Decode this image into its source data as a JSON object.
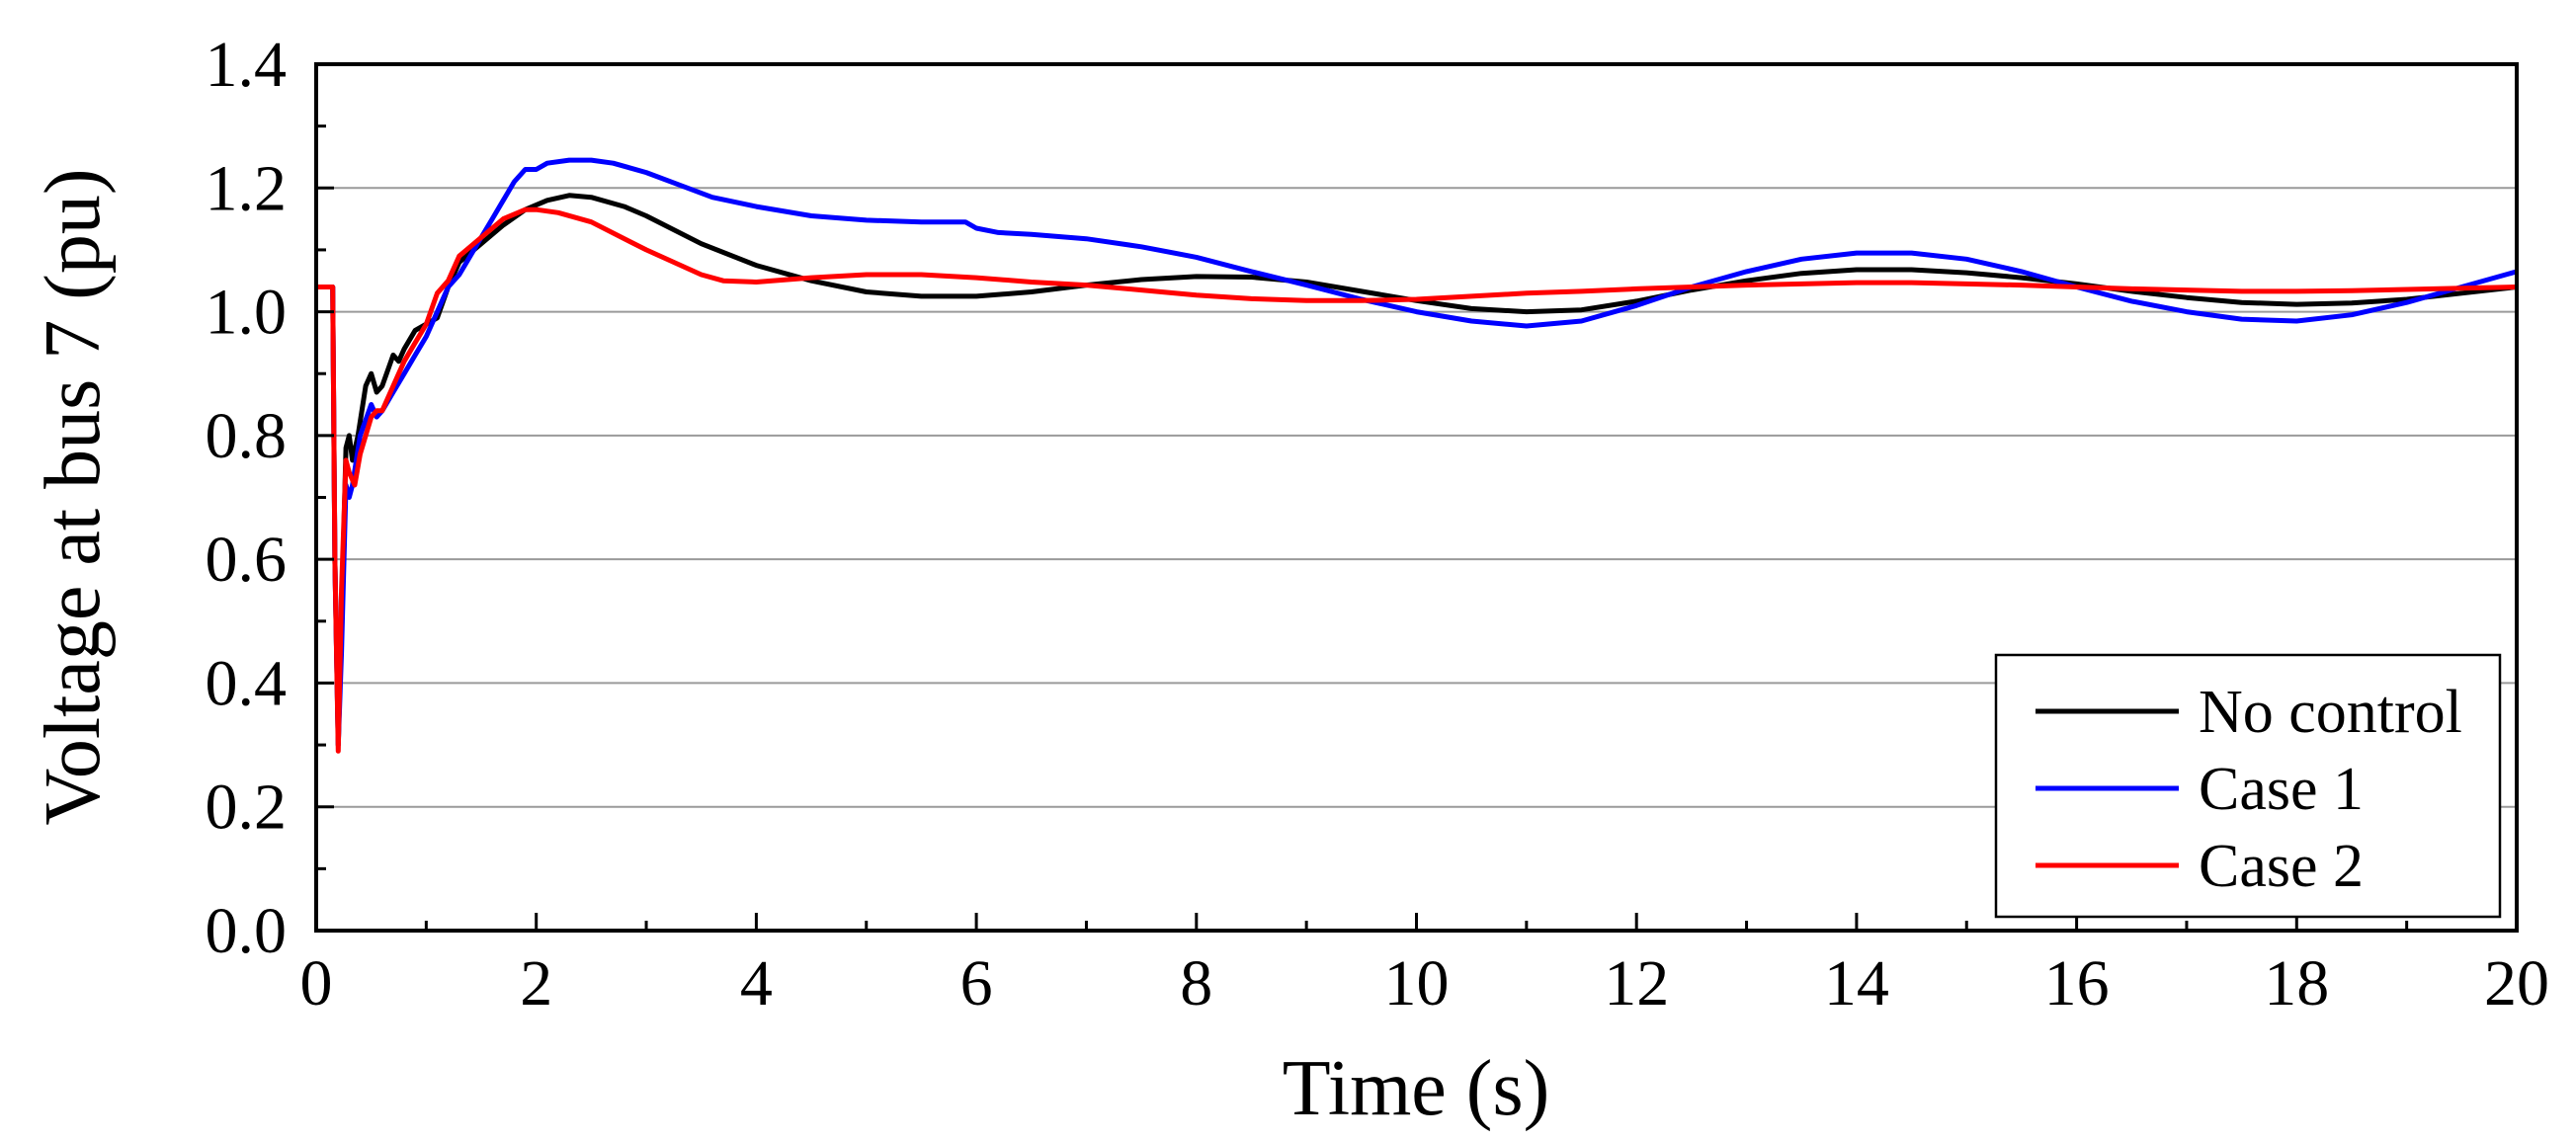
{
  "chart_data": {
    "type": "line",
    "title": "",
    "xlabel": "Time (s)",
    "ylabel": "Voltage at bus 7 (pu)",
    "xlim": [
      0,
      20
    ],
    "ylim": [
      0.0,
      1.4
    ],
    "xticks": [
      "0",
      "2",
      "4",
      "6",
      "8",
      "10",
      "12",
      "14",
      "16",
      "18",
      "20"
    ],
    "yticks": [
      "0.0",
      "0.2",
      "0.4",
      "0.6",
      "0.8",
      "1.0",
      "1.2",
      "1.4"
    ],
    "grid": "horizontal",
    "legend_position": "bottom-right",
    "series": [
      {
        "name": "No control",
        "color": "#000000",
        "points": [
          [
            0,
            1.04
          ],
          [
            0.15,
            1.04
          ],
          [
            0.17,
            0.6
          ],
          [
            0.2,
            0.3
          ],
          [
            0.23,
            0.5
          ],
          [
            0.27,
            0.78
          ],
          [
            0.3,
            0.8
          ],
          [
            0.33,
            0.76
          ],
          [
            0.38,
            0.8
          ],
          [
            0.45,
            0.88
          ],
          [
            0.5,
            0.9
          ],
          [
            0.55,
            0.87
          ],
          [
            0.6,
            0.88
          ],
          [
            0.7,
            0.93
          ],
          [
            0.75,
            0.92
          ],
          [
            0.8,
            0.94
          ],
          [
            0.9,
            0.97
          ],
          [
            1.0,
            0.98
          ],
          [
            1.1,
            0.99
          ],
          [
            1.2,
            1.04
          ],
          [
            1.3,
            1.08
          ],
          [
            1.5,
            1.11
          ],
          [
            1.7,
            1.14
          ],
          [
            1.9,
            1.165
          ],
          [
            2.1,
            1.18
          ],
          [
            2.3,
            1.188
          ],
          [
            2.5,
            1.185
          ],
          [
            2.8,
            1.17
          ],
          [
            3.0,
            1.155
          ],
          [
            3.5,
            1.11
          ],
          [
            4.0,
            1.075
          ],
          [
            4.5,
            1.05
          ],
          [
            5.0,
            1.032
          ],
          [
            5.5,
            1.025
          ],
          [
            6.0,
            1.025
          ],
          [
            6.5,
            1.032
          ],
          [
            7.0,
            1.043
          ],
          [
            7.5,
            1.052
          ],
          [
            8.0,
            1.057
          ],
          [
            8.5,
            1.056
          ],
          [
            9.0,
            1.048
          ],
          [
            9.5,
            1.033
          ],
          [
            10.0,
            1.018
          ],
          [
            10.5,
            1.005
          ],
          [
            11.0,
            1.0
          ],
          [
            11.5,
            1.003
          ],
          [
            12.0,
            1.017
          ],
          [
            12.5,
            1.035
          ],
          [
            13.0,
            1.05
          ],
          [
            13.5,
            1.062
          ],
          [
            14.0,
            1.068
          ],
          [
            14.5,
            1.068
          ],
          [
            15.0,
            1.063
          ],
          [
            15.5,
            1.055
          ],
          [
            16.0,
            1.045
          ],
          [
            16.5,
            1.033
          ],
          [
            17.0,
            1.023
          ],
          [
            17.5,
            1.015
          ],
          [
            18.0,
            1.012
          ],
          [
            18.5,
            1.014
          ],
          [
            19.0,
            1.02
          ],
          [
            19.5,
            1.03
          ],
          [
            20.0,
            1.04
          ]
        ]
      },
      {
        "name": "Case 1",
        "color": "#0000ff",
        "points": [
          [
            0,
            1.04
          ],
          [
            0.15,
            1.04
          ],
          [
            0.17,
            0.6
          ],
          [
            0.2,
            0.3
          ],
          [
            0.23,
            0.45
          ],
          [
            0.27,
            0.72
          ],
          [
            0.3,
            0.7
          ],
          [
            0.33,
            0.72
          ],
          [
            0.4,
            0.8
          ],
          [
            0.5,
            0.85
          ],
          [
            0.55,
            0.83
          ],
          [
            0.6,
            0.84
          ],
          [
            0.7,
            0.87
          ],
          [
            0.8,
            0.9
          ],
          [
            0.9,
            0.93
          ],
          [
            1.0,
            0.96
          ],
          [
            1.1,
            1.0
          ],
          [
            1.2,
            1.04
          ],
          [
            1.3,
            1.06
          ],
          [
            1.5,
            1.12
          ],
          [
            1.6,
            1.15
          ],
          [
            1.7,
            1.18
          ],
          [
            1.8,
            1.21
          ],
          [
            1.9,
            1.23
          ],
          [
            2.0,
            1.23
          ],
          [
            2.1,
            1.24
          ],
          [
            2.3,
            1.245
          ],
          [
            2.5,
            1.245
          ],
          [
            2.7,
            1.24
          ],
          [
            3.0,
            1.225
          ],
          [
            3.3,
            1.205
          ],
          [
            3.6,
            1.185
          ],
          [
            4.0,
            1.17
          ],
          [
            4.5,
            1.155
          ],
          [
            5.0,
            1.148
          ],
          [
            5.5,
            1.145
          ],
          [
            5.9,
            1.145
          ],
          [
            6.0,
            1.135
          ],
          [
            6.2,
            1.128
          ],
          [
            6.5,
            1.125
          ],
          [
            7.0,
            1.118
          ],
          [
            7.5,
            1.105
          ],
          [
            8.0,
            1.088
          ],
          [
            8.5,
            1.065
          ],
          [
            9.0,
            1.043
          ],
          [
            9.5,
            1.02
          ],
          [
            10.0,
            1.0
          ],
          [
            10.5,
            0.985
          ],
          [
            11.0,
            0.977
          ],
          [
            11.5,
            0.985
          ],
          [
            12.0,
            1.01
          ],
          [
            12.5,
            1.04
          ],
          [
            13.0,
            1.065
          ],
          [
            13.5,
            1.085
          ],
          [
            14.0,
            1.095
          ],
          [
            14.5,
            1.095
          ],
          [
            15.0,
            1.085
          ],
          [
            15.5,
            1.065
          ],
          [
            16.0,
            1.04
          ],
          [
            16.5,
            1.017
          ],
          [
            17.0,
            1.0
          ],
          [
            17.5,
            0.988
          ],
          [
            18.0,
            0.985
          ],
          [
            18.5,
            0.995
          ],
          [
            19.0,
            1.015
          ],
          [
            19.5,
            1.04
          ],
          [
            20.0,
            1.065
          ]
        ]
      },
      {
        "name": "Case 2",
        "color": "#ff0000",
        "points": [
          [
            0,
            1.04
          ],
          [
            0.15,
            1.04
          ],
          [
            0.17,
            0.6
          ],
          [
            0.2,
            0.29
          ],
          [
            0.23,
            0.55
          ],
          [
            0.27,
            0.76
          ],
          [
            0.3,
            0.74
          ],
          [
            0.35,
            0.72
          ],
          [
            0.4,
            0.77
          ],
          [
            0.5,
            0.83
          ],
          [
            0.55,
            0.84
          ],
          [
            0.6,
            0.84
          ],
          [
            0.7,
            0.88
          ],
          [
            0.8,
            0.92
          ],
          [
            0.9,
            0.95
          ],
          [
            1.0,
            0.98
          ],
          [
            1.1,
            1.03
          ],
          [
            1.2,
            1.05
          ],
          [
            1.3,
            1.09
          ],
          [
            1.5,
            1.12
          ],
          [
            1.7,
            1.15
          ],
          [
            1.9,
            1.165
          ],
          [
            2.0,
            1.165
          ],
          [
            2.2,
            1.16
          ],
          [
            2.5,
            1.145
          ],
          [
            3.0,
            1.1
          ],
          [
            3.5,
            1.06
          ],
          [
            3.7,
            1.05
          ],
          [
            4.0,
            1.048
          ],
          [
            4.5,
            1.055
          ],
          [
            5.0,
            1.06
          ],
          [
            5.5,
            1.06
          ],
          [
            6.0,
            1.055
          ],
          [
            6.5,
            1.048
          ],
          [
            7.0,
            1.043
          ],
          [
            7.5,
            1.035
          ],
          [
            8.0,
            1.027
          ],
          [
            8.5,
            1.021
          ],
          [
            9.0,
            1.018
          ],
          [
            9.5,
            1.018
          ],
          [
            10.0,
            1.02
          ],
          [
            10.5,
            1.025
          ],
          [
            11.0,
            1.03
          ],
          [
            11.5,
            1.033
          ],
          [
            12.0,
            1.037
          ],
          [
            12.5,
            1.04
          ],
          [
            13.0,
            1.043
          ],
          [
            13.5,
            1.045
          ],
          [
            14.0,
            1.047
          ],
          [
            14.5,
            1.047
          ],
          [
            15.0,
            1.045
          ],
          [
            15.5,
            1.043
          ],
          [
            16.0,
            1.04
          ],
          [
            16.5,
            1.037
          ],
          [
            17.0,
            1.035
          ],
          [
            17.5,
            1.033
          ],
          [
            18.0,
            1.033
          ],
          [
            18.5,
            1.034
          ],
          [
            19.0,
            1.036
          ],
          [
            19.5,
            1.038
          ],
          [
            20.0,
            1.04
          ]
        ]
      }
    ]
  }
}
